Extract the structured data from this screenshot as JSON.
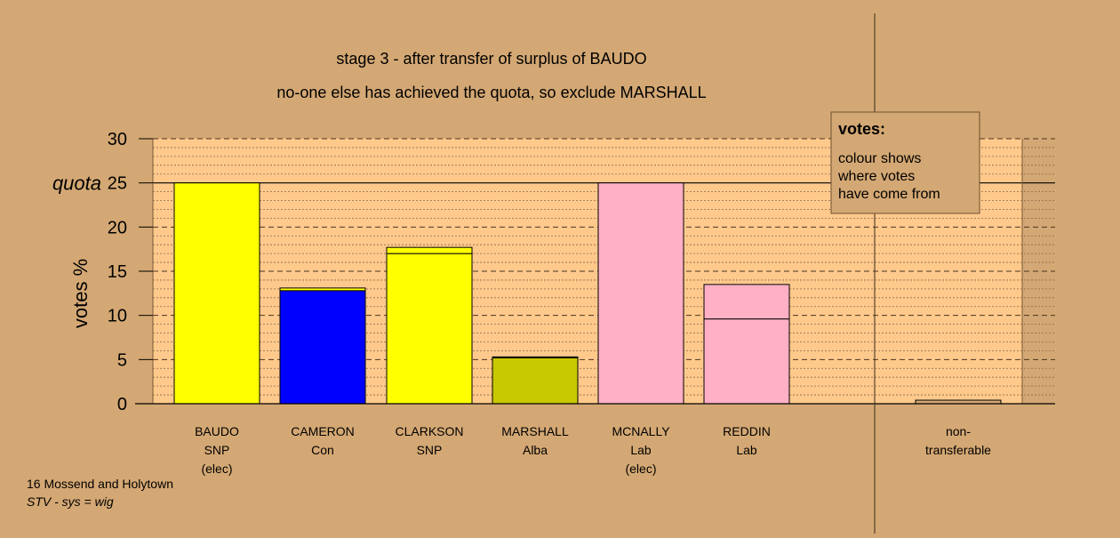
{
  "title_line1": "stage 3 - after transfer of surplus of BAUDO",
  "title_line2": "no-one else has achieved the quota, so exclude MARSHALL",
  "legend": {
    "heading": "votes:",
    "lines": [
      "colour shows",
      "where votes",
      "have come from"
    ]
  },
  "footer": {
    "ward": "16 Mossend and Holytown",
    "system": "STV - sys = wig"
  },
  "colors": {
    "background": "#d4a874",
    "plot_area": "#ffc98c",
    "snp": "#ffff00",
    "con": "#0000ff",
    "alba": "#c8c800",
    "lab": "#ffb0c4",
    "nontransferable": "#d4a874"
  },
  "chart_data": {
    "type": "bar",
    "stacked": true,
    "ylabel": "votes %",
    "ylim": [
      0,
      30
    ],
    "yticks": [
      0,
      5,
      10,
      15,
      20,
      25,
      30
    ],
    "quota": 25,
    "quota_label": "quota",
    "grid": "dashed major every 5, dotted minor every 1",
    "categories": [
      {
        "lines": [
          "BAUDO",
          "SNP",
          "(elec)"
        ],
        "segments": [
          {
            "value": 25.0,
            "source": "BAUDO",
            "color": "#ffff00"
          }
        ]
      },
      {
        "lines": [
          "CAMERON",
          "Con"
        ],
        "segments": [
          {
            "value": 12.8,
            "source": "CAMERON",
            "color": "#0000ff"
          },
          {
            "value": 0.3,
            "source": "BAUDO",
            "color": "#ffff00"
          }
        ]
      },
      {
        "lines": [
          "CLARKSON",
          "SNP"
        ],
        "segments": [
          {
            "value": 17.0,
            "source": "CLARKSON",
            "color": "#ffff00"
          },
          {
            "value": 0.7,
            "source": "BAUDO",
            "color": "#ffff00"
          }
        ]
      },
      {
        "lines": [
          "MARSHALL",
          "Alba"
        ],
        "segments": [
          {
            "value": 5.2,
            "source": "MARSHALL",
            "color": "#c8c800"
          },
          {
            "value": 0.1,
            "source": "BAUDO",
            "color": "#c8c800"
          }
        ]
      },
      {
        "lines": [
          "MCNALLY",
          "Lab",
          "(elec)"
        ],
        "segments": [
          {
            "value": 25.0,
            "source": "MCNALLY",
            "color": "#ffb0c4"
          }
        ]
      },
      {
        "lines": [
          "REDDIN",
          "Lab"
        ],
        "segments": [
          {
            "value": 9.6,
            "source": "REDDIN",
            "color": "#ffb0c4"
          },
          {
            "value": 3.9,
            "source": "MCNALLY",
            "color": "#ffb0c4"
          }
        ]
      },
      {
        "lines": [
          "non-",
          "transferable"
        ],
        "separated": true,
        "segments": [
          {
            "value": 0.4,
            "source": "non-transferable",
            "color": "#d4a874"
          }
        ]
      }
    ]
  }
}
